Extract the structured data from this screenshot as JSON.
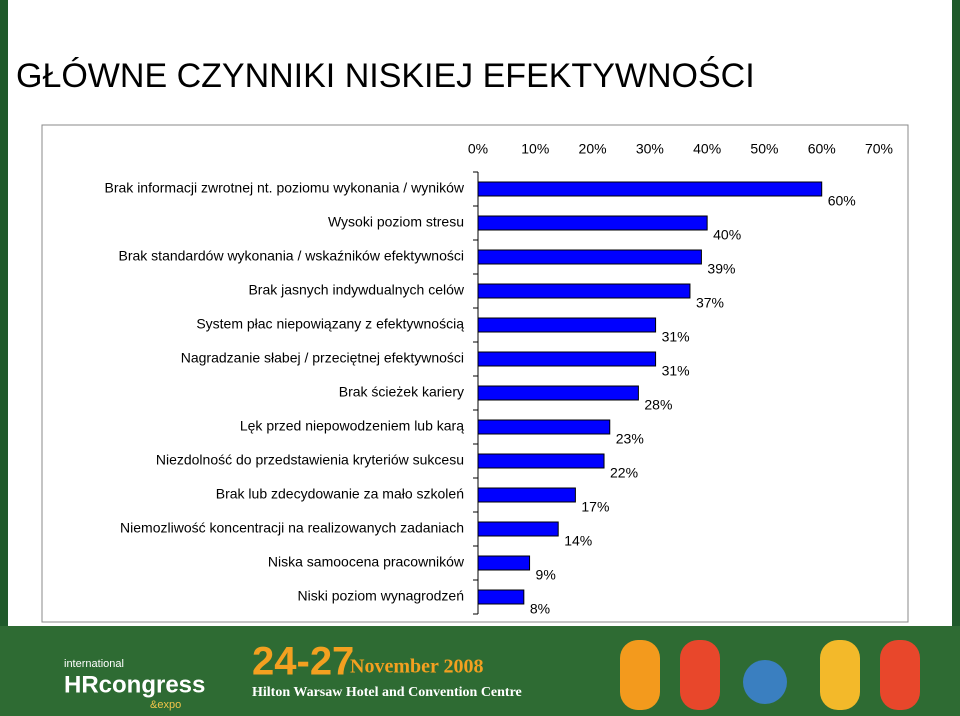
{
  "chart_data": {
    "type": "barh",
    "title": "GŁÓWNE CZYNNIKI NISKIEJ EFEKTYWNOŚCI",
    "categories": [
      "Brak informacji zwrotnej nt. poziomu wykonania / wyników",
      "Wysoki poziom stresu",
      "Brak standardów wykonania / wskaźników efektywności",
      "Brak jasnych indywdualnych celów",
      "System płac niepowiązany z efektywnością",
      "Nagradzanie słabej / przeciętnej efektywności",
      "Brak ścieżek kariery",
      "Lęk przed niepowodzeniem lub karą",
      "Niezdolność do przedstawienia kryteriów sukcesu",
      "Brak lub zdecydowanie za mało szkoleń",
      "Niemozliwość koncentracji na realizowanych zadaniach",
      "Niska samoocena pracowników",
      "Niski poziom wynagrodzeń"
    ],
    "values": [
      60,
      40,
      39,
      37,
      31,
      31,
      28,
      23,
      22,
      17,
      14,
      9,
      8
    ],
    "value_labels": [
      "60%",
      "40%",
      "39%",
      "37%",
      "31%",
      "31%",
      "28%",
      "23%",
      "22%",
      "17%",
      "14%",
      "9%",
      "8%"
    ],
    "color": "#0000ff",
    "xlim": [
      0,
      70
    ],
    "xticks": [
      {
        "value": 0,
        "label": "0%"
      },
      {
        "value": 10,
        "label": "10%"
      },
      {
        "value": 20,
        "label": "20%"
      },
      {
        "value": 30,
        "label": "30%"
      },
      {
        "value": 40,
        "label": "40%"
      },
      {
        "value": 50,
        "label": "50%"
      },
      {
        "value": 60,
        "label": "60%"
      },
      {
        "value": 70,
        "label": "70%"
      }
    ]
  },
  "footer": {
    "dates": "24-27",
    "month": "November 2008",
    "venue": "Hilton Warsaw Hotel and Convention Centre",
    "brand_top": "international",
    "brand": "HRcongress",
    "brand_bottom": "&expo"
  }
}
